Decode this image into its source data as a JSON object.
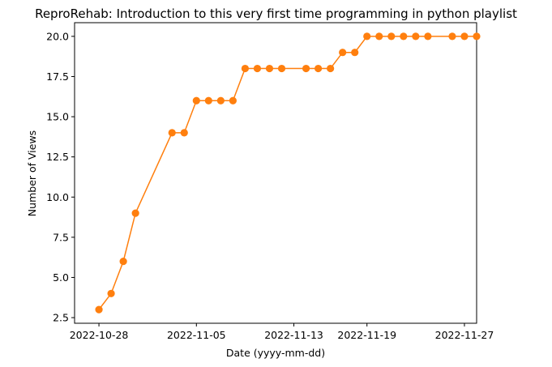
{
  "chart_data": {
    "type": "line",
    "title": "ReproRehab: Introduction to this very first time programming in python playlist",
    "xlabel": "Date (yyyy-mm-dd)",
    "ylabel": "Number of Views",
    "x_ticks": [
      "2022-10-28",
      "2022-11-05",
      "2022-11-13",
      "2022-11-19",
      "2022-11-27"
    ],
    "y_ticks": [
      "2.5",
      "5.0",
      "7.5",
      "10.0",
      "12.5",
      "15.0",
      "17.5",
      "20.0"
    ],
    "xlim": [
      "2022-10-26",
      "2022-11-28"
    ],
    "ylim": [
      2.15,
      20.85
    ],
    "grid": false,
    "legend": "none",
    "line_color": "#ff7f0e",
    "series": [
      {
        "x": [
          "2022-10-28",
          "2022-10-29",
          "2022-10-30",
          "2022-10-31",
          "2022-11-03",
          "2022-11-04",
          "2022-11-05",
          "2022-11-06",
          "2022-11-07",
          "2022-11-08",
          "2022-11-09",
          "2022-11-10",
          "2022-11-11",
          "2022-11-12",
          "2022-11-14",
          "2022-11-15",
          "2022-11-16",
          "2022-11-17",
          "2022-11-18",
          "2022-11-19",
          "2022-11-20",
          "2022-11-21",
          "2022-11-22",
          "2022-11-23",
          "2022-11-24",
          "2022-11-26",
          "2022-11-27",
          "2022-11-28"
        ],
        "y": [
          3,
          4,
          6,
          9,
          14,
          14,
          16,
          16,
          16,
          16,
          18,
          18,
          18,
          18,
          18,
          18,
          18,
          19,
          19,
          20,
          20,
          20,
          20,
          20,
          20,
          20,
          20,
          20
        ]
      }
    ]
  }
}
